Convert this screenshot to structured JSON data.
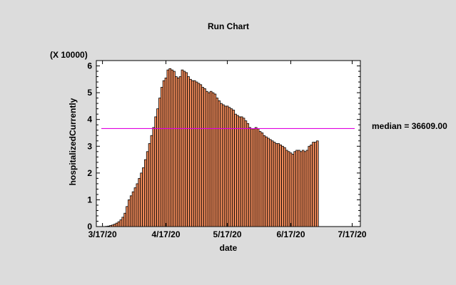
{
  "chart_data": {
    "type": "bar",
    "title": "Run Chart",
    "xlabel": "date",
    "ylabel": "hospitalizedCurrently",
    "y_multiplier_label": "(X 10000)",
    "median_label": "median = 36609.00",
    "median": 36609,
    "x_ticks": [
      "3/17/20",
      "4/17/20",
      "5/17/20",
      "6/17/20",
      "7/17/20"
    ],
    "y_ticks": [
      "0",
      "1",
      "2",
      "3",
      "4",
      "5",
      "6"
    ],
    "x_range": [
      "2020-03-14",
      "2020-07-21"
    ],
    "ylim": [
      0,
      6.2
    ],
    "y_units": "x 10000",
    "bar_color": "#f08a5a",
    "median_color": "#e000e0",
    "start_date": "2020-03-19",
    "values": [
      0.01,
      0.02,
      0.04,
      0.06,
      0.09,
      0.13,
      0.18,
      0.25,
      0.35,
      0.5,
      0.75,
      1.0,
      1.15,
      1.3,
      1.45,
      1.6,
      1.8,
      2.0,
      2.2,
      2.5,
      2.8,
      3.1,
      3.4,
      3.7,
      4.1,
      4.4,
      4.8,
      5.2,
      5.45,
      5.55,
      5.85,
      5.9,
      5.85,
      5.8,
      5.6,
      5.55,
      5.6,
      5.85,
      5.8,
      5.75,
      5.6,
      5.5,
      5.45,
      5.45,
      5.4,
      5.35,
      5.3,
      5.2,
      5.15,
      5.05,
      5.0,
      5.05,
      5.0,
      4.95,
      4.8,
      4.7,
      4.6,
      4.55,
      4.5,
      4.5,
      4.45,
      4.4,
      4.35,
      4.2,
      4.15,
      4.1,
      4.1,
      4.05,
      3.95,
      3.85,
      3.7,
      3.65,
      3.65,
      3.7,
      3.65,
      3.55,
      3.5,
      3.4,
      3.35,
      3.3,
      3.25,
      3.2,
      3.15,
      3.1,
      3.1,
      3.05,
      3.0,
      2.95,
      2.85,
      2.8,
      2.75,
      2.7,
      2.8,
      2.85,
      2.85,
      2.8,
      2.85,
      2.8,
      2.85,
      3.0,
      3.05,
      3.15,
      3.15,
      3.2
    ]
  }
}
